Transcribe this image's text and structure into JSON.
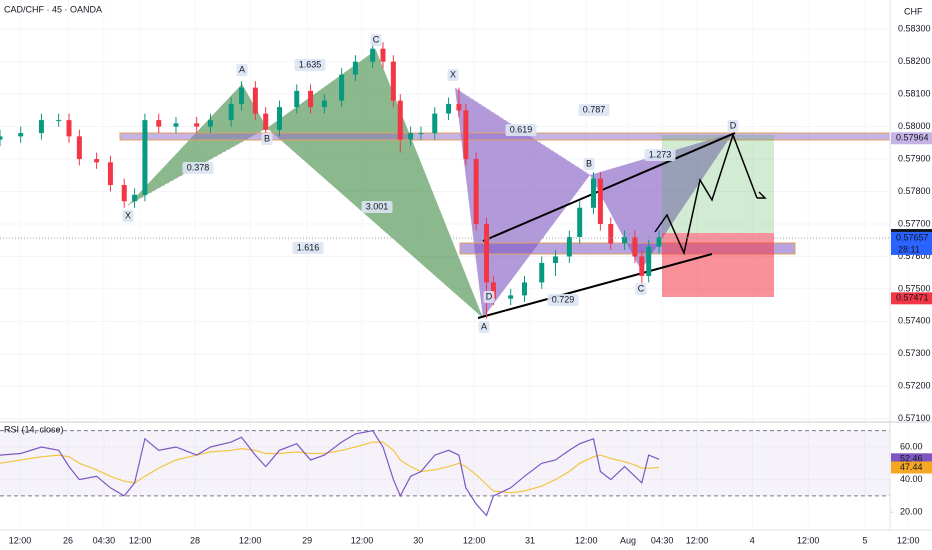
{
  "chart_data": {
    "type": "candlestick",
    "title": "CAD/CHF · 45 · OANDA",
    "currency": "CHF",
    "xlim": [
      0,
      270.1
    ],
    "ylim": [
      0.5709,
      0.5839
    ],
    "xticks": [
      {
        "value": 5.8,
        "label": "12:00"
      },
      {
        "value": 19.7,
        "label": "26"
      },
      {
        "value": 30.1,
        "label": "04:30"
      },
      {
        "value": 40.6,
        "label": "12:00"
      },
      {
        "value": 56.5,
        "label": "28"
      },
      {
        "value": 72.5,
        "label": "12:00"
      },
      {
        "value": 89,
        "label": "29"
      },
      {
        "value": 104.9,
        "label": "12:00"
      },
      {
        "value": 121.2,
        "label": "30"
      },
      {
        "value": 137.4,
        "label": "12:00"
      },
      {
        "value": 153.6,
        "label": "31"
      },
      {
        "value": 169.9,
        "label": "12:00"
      },
      {
        "value": 182,
        "label": "Aug"
      },
      {
        "value": 191.9,
        "label": "04:30"
      },
      {
        "value": 202,
        "label": "12:00"
      },
      {
        "value": 218,
        "label": "4"
      },
      {
        "value": 234.2,
        "label": "12:00"
      },
      {
        "value": 250.7,
        "label": "5"
      },
      {
        "value": 263.2,
        "label": "12:00"
      }
    ],
    "yticks": [
      {
        "value": 0.571,
        "label": "0.57100"
      },
      {
        "value": 0.572,
        "label": "0.57200"
      },
      {
        "value": 0.573,
        "label": "0.57300"
      },
      {
        "value": 0.574,
        "label": "0.57400"
      },
      {
        "value": 0.575,
        "label": "0.57500"
      },
      {
        "value": 0.576,
        "label": "0.57600"
      },
      {
        "value": 0.577,
        "label": "0.57700"
      },
      {
        "value": 0.578,
        "label": "0.57800"
      },
      {
        "value": 0.579,
        "label": "0.57900"
      },
      {
        "value": 0.58,
        "label": "0.58000"
      },
      {
        "value": 0.581,
        "label": "0.58100"
      },
      {
        "value": 0.582,
        "label": "0.58200"
      },
      {
        "value": 0.583,
        "label": "0.58300"
      }
    ],
    "up_color": "#089981",
    "down_color": "#f23645",
    "candles": {
      "x": [
        0,
        6,
        12,
        17,
        20,
        23,
        28,
        32,
        36,
        39,
        42,
        46,
        51,
        57,
        61,
        67,
        70,
        74,
        77,
        81,
        86,
        90,
        94,
        99,
        103,
        108,
        111,
        114,
        116,
        119,
        122,
        126,
        130,
        133,
        135,
        138,
        141,
        143,
        148,
        152,
        157,
        161,
        165,
        168,
        172,
        174,
        177,
        181,
        184,
        186,
        188,
        191
      ],
      "open": [
        0.5796,
        0.5797,
        0.5798,
        0.5802,
        0.5802,
        0.5797,
        0.579,
        0.5789,
        0.5782,
        0.5777,
        0.5779,
        0.5802,
        0.58,
        0.5801,
        0.58,
        0.5802,
        0.5807,
        0.5812,
        0.5804,
        0.5799,
        0.5806,
        0.5811,
        0.5806,
        0.5808,
        0.5816,
        0.582,
        0.5824,
        0.582,
        0.5808,
        0.5796,
        0.5798,
        0.5798,
        0.5804,
        0.5807,
        0.5805,
        0.579,
        0.577,
        0.5752,
        0.5747,
        0.5748,
        0.5752,
        0.5758,
        0.576,
        0.5766,
        0.5775,
        0.5784,
        0.577,
        0.5764,
        0.5766,
        0.576,
        0.5754,
        0.5763
      ],
      "high": [
        0.5799,
        0.58,
        0.5804,
        0.5804,
        0.5804,
        0.5799,
        0.5792,
        0.5791,
        0.5784,
        0.5781,
        0.5804,
        0.5804,
        0.5803,
        0.5803,
        0.5804,
        0.5809,
        0.5814,
        0.5814,
        0.5806,
        0.5808,
        0.5813,
        0.5813,
        0.581,
        0.5818,
        0.5822,
        0.5826,
        0.5826,
        0.5822,
        0.581,
        0.58,
        0.58,
        0.5806,
        0.5809,
        0.5812,
        0.5807,
        0.5792,
        0.5772,
        0.5754,
        0.575,
        0.5754,
        0.576,
        0.5762,
        0.5768,
        0.5777,
        0.5786,
        0.5786,
        0.5772,
        0.5768,
        0.5768,
        0.5762,
        0.5765,
        0.5768
      ],
      "low": [
        0.5794,
        0.5795,
        0.5796,
        0.58,
        0.5795,
        0.5788,
        0.5787,
        0.578,
        0.5775,
        0.5775,
        0.5777,
        0.5798,
        0.5798,
        0.5798,
        0.5798,
        0.58,
        0.5805,
        0.5802,
        0.5797,
        0.5797,
        0.5804,
        0.5804,
        0.5804,
        0.5806,
        0.5814,
        0.5818,
        0.5818,
        0.5806,
        0.5792,
        0.5794,
        0.5796,
        0.5796,
        0.5802,
        0.5803,
        0.5788,
        0.5768,
        0.5741,
        0.5745,
        0.5745,
        0.5746,
        0.575,
        0.5754,
        0.5758,
        0.5764,
        0.5773,
        0.5768,
        0.5762,
        0.5762,
        0.5758,
        0.5751,
        0.5752,
        0.5761
      ],
      "close": [
        0.5797,
        0.5798,
        0.5802,
        0.5802,
        0.5797,
        0.579,
        0.5789,
        0.5782,
        0.5777,
        0.5779,
        0.5802,
        0.58,
        0.5801,
        0.58,
        0.5802,
        0.5807,
        0.5812,
        0.5804,
        0.5799,
        0.5806,
        0.5811,
        0.5806,
        0.5808,
        0.5816,
        0.582,
        0.5824,
        0.582,
        0.5808,
        0.5796,
        0.5798,
        0.5798,
        0.5804,
        0.5807,
        0.5805,
        0.579,
        0.577,
        0.5752,
        0.5747,
        0.5748,
        0.5752,
        0.5758,
        0.576,
        0.5766,
        0.5775,
        0.5784,
        0.577,
        0.5764,
        0.5766,
        0.576,
        0.5754,
        0.5763,
        0.5766
      ]
    },
    "price_labels": [
      {
        "value": 0.57964,
        "color": "#c5b3e6"
      },
      {
        "value": 0.57666,
        "color": "#131722"
      },
      {
        "value": 0.57657,
        "color": "#2962ff"
      },
      {
        "value": 0.57471,
        "color": "#f23645"
      }
    ],
    "countdown": "28:11",
    "annotations": [
      "X",
      "A",
      "B",
      "C",
      "D",
      "1.635",
      "0.378",
      "3.001",
      "1.616",
      "X",
      "A",
      "B",
      "C",
      "D",
      "0.787",
      "0.619",
      "1.273",
      "0.729"
    ],
    "rsi": {
      "title": "RSI (14, close)",
      "ylim": [
        9.1,
        74.1
      ],
      "yticks": [
        {
          "value": 20,
          "label": "20.00"
        },
        {
          "value": 40,
          "label": "40.00"
        },
        {
          "value": 60,
          "label": "60.00"
        }
      ],
      "bands": [
        30,
        70
      ],
      "color": "#7e57c2",
      "ma_color": "#f5c542",
      "values": [
        55,
        56,
        60,
        58,
        48,
        40,
        42,
        35,
        30,
        38,
        65,
        58,
        60,
        55,
        60,
        63,
        66,
        55,
        48,
        58,
        62,
        52,
        55,
        63,
        68,
        70,
        60,
        40,
        30,
        42,
        45,
        55,
        58,
        55,
        35,
        25,
        18,
        30,
        35,
        42,
        50,
        52,
        58,
        62,
        65,
        45,
        40,
        48,
        42,
        38,
        55,
        52.46
      ],
      "ma": [
        50,
        52,
        54,
        55,
        54,
        50,
        46,
        42,
        39,
        38,
        42,
        47,
        52,
        55,
        57,
        58,
        59,
        58,
        56,
        56,
        57,
        56,
        56,
        58,
        60,
        63,
        63,
        58,
        52,
        48,
        45,
        46,
        48,
        50,
        48,
        43,
        37,
        33,
        32,
        33,
        36,
        40,
        45,
        50,
        54,
        55,
        53,
        51,
        49,
        47,
        47,
        47.44
      ]
    }
  }
}
